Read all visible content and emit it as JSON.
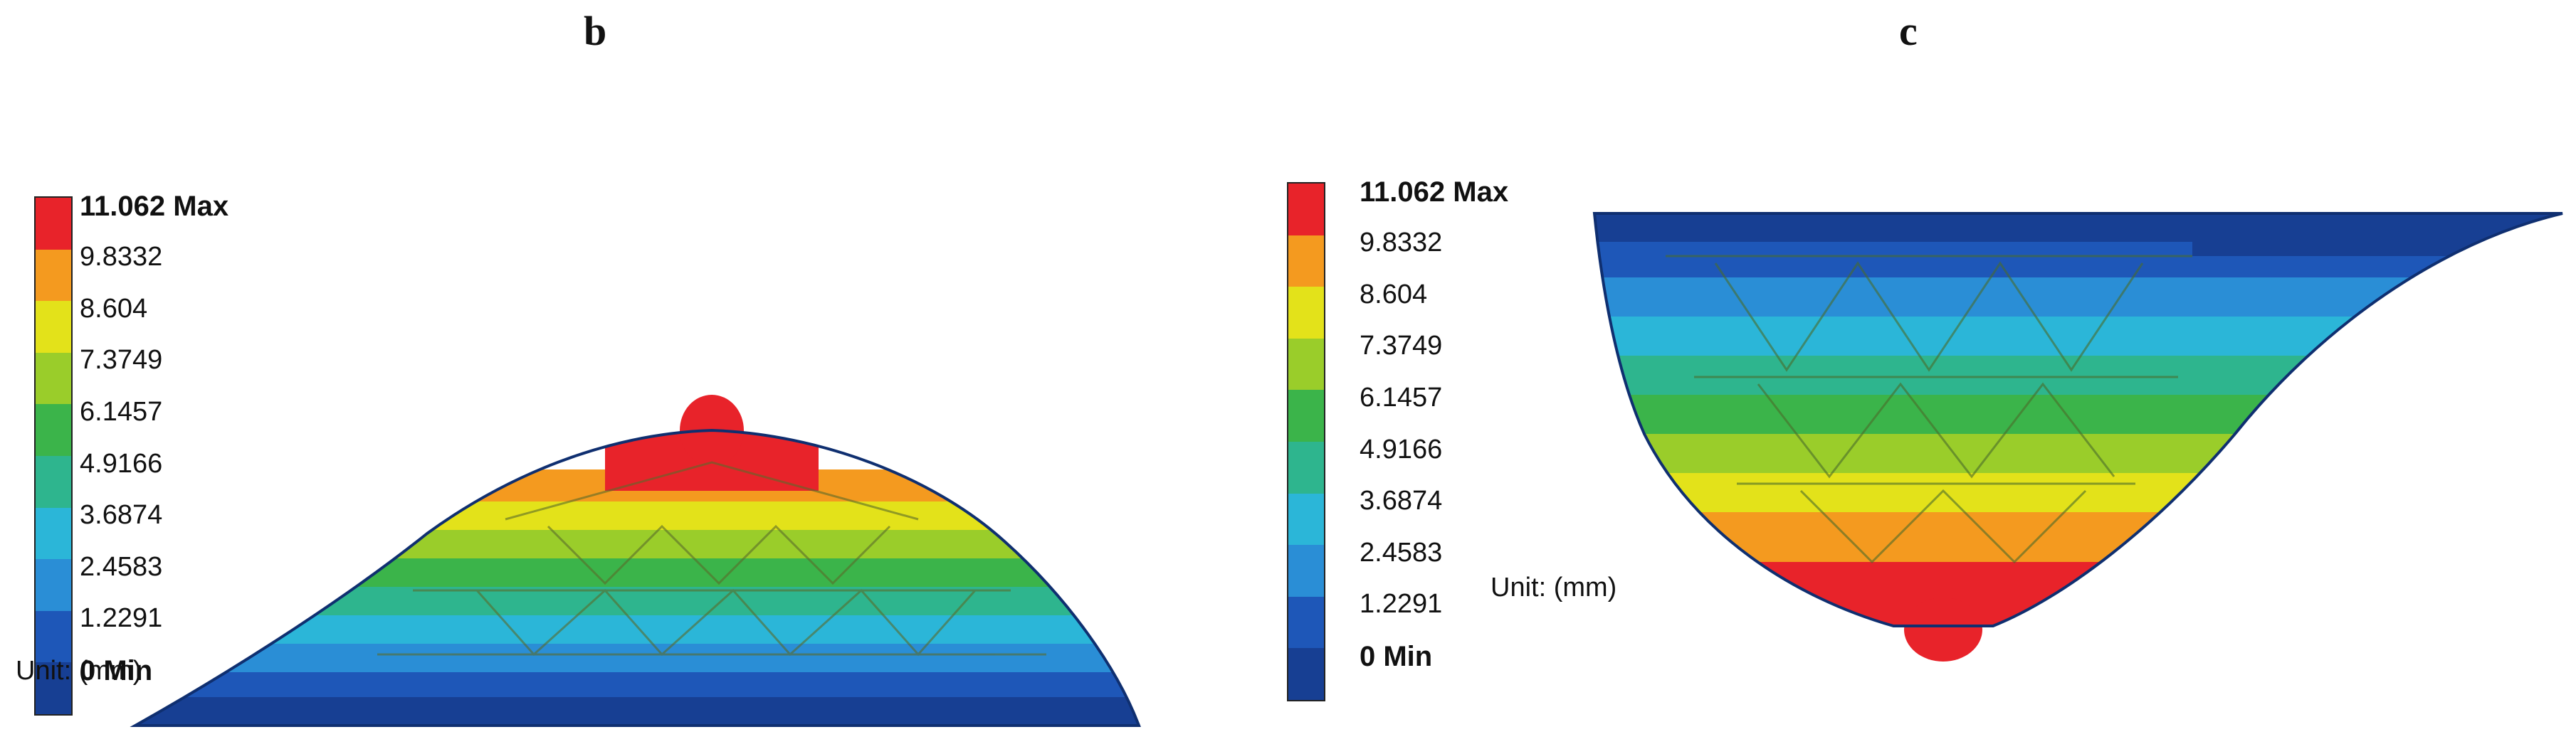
{
  "panels": {
    "b": {
      "label": "b",
      "legend": {
        "max": "11.062 Max",
        "values": [
          "9.8332",
          "8.604",
          "7.3749",
          "6.1457",
          "4.9166",
          "3.6874",
          "2.4583",
          "1.2291"
        ],
        "min": "0 Min"
      },
      "unit": "Unit: (mm)"
    },
    "c": {
      "label": "c",
      "legend": {
        "max": "11.062 Max",
        "values": [
          "9.8332",
          "8.604",
          "7.3749",
          "6.1457",
          "4.9166",
          "3.6874",
          "2.4583",
          "1.2291"
        ],
        "min": "0 Min"
      },
      "unit": "Unit: (mm)"
    }
  },
  "colors": {
    "scale": [
      "#e8232a",
      "#f49a1f",
      "#e3e21a",
      "#9acd2a",
      "#3bb44a",
      "#2eb58e",
      "#2bb6d8",
      "#2a8ed6",
      "#1e57b8",
      "#173f93"
    ]
  }
}
